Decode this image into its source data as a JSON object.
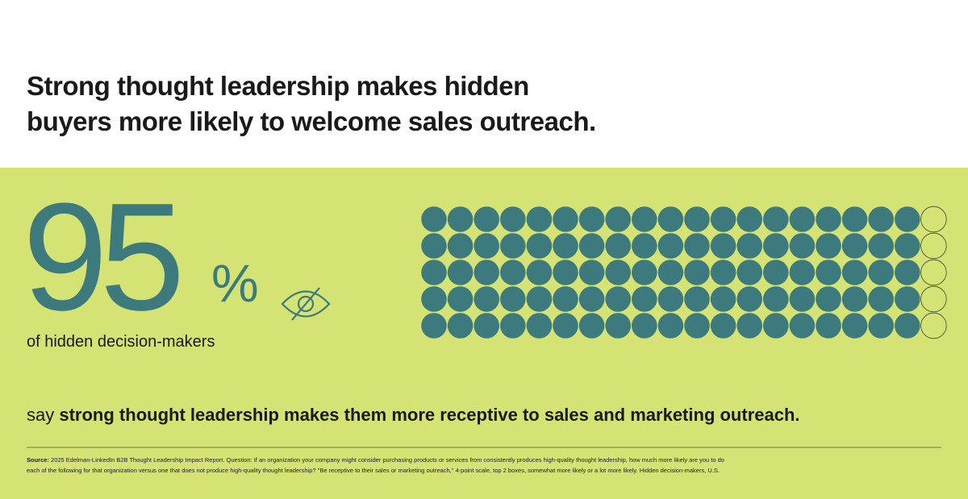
{
  "title": [
    "Strong thought leadership makes hidden",
    "buyers more likely to welcome sales outreach."
  ],
  "stat": {
    "value": 95,
    "unit": "%",
    "label": "of hidden decision-makers"
  },
  "statement": {
    "prefix": "say",
    "emphasis": "strong thought leadership makes them more receptive to sales and marketing outreach."
  },
  "source": {
    "label": "Source:",
    "lines": [
      "2025 Edelman-LinkedIn B2B Thought Leadership Impact Report. Question: If an organization your company might consider purchasing products or services from consistently produces high-quality thought leadership, how much more likely are you to do",
      "each of the following for that organization versus one that does not produce high-quality thought leadership? \"Be receptive to their sales or marketing outreach,\" 4-point scale, top 2 boxes, somewhat more likely or a lot more likely. Hidden decision-makers, U.S."
    ]
  },
  "colors": {
    "accent": "#3d7a7d",
    "band": "#d5e375"
  }
}
